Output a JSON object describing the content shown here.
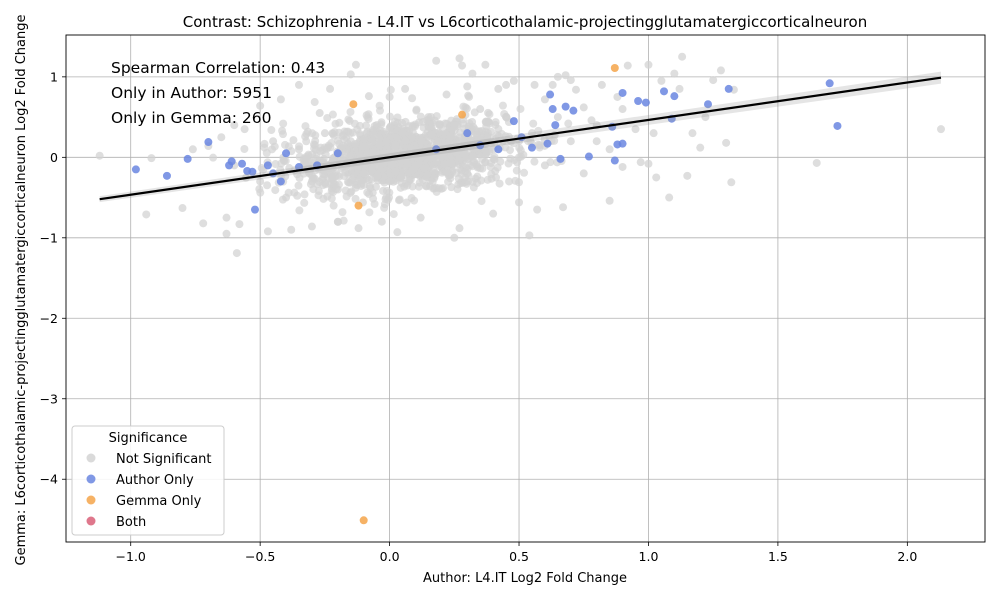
{
  "chart_data": {
    "type": "scatter",
    "title": "Contrast: Schizophrenia - L4.IT vs L6corticothalamic-projectingglutamatergiccorticalneuron",
    "xlabel": "Author: L4.IT Log2 Fold Change",
    "ylabel": "Gemma: L6corticothalamic-projectingglutamatergiccorticalneuron Log2 Fold Change",
    "xlim": [
      -1.25,
      2.3
    ],
    "ylim": [
      -4.78,
      1.52
    ],
    "xticks": [
      -1.0,
      -0.5,
      0.0,
      0.5,
      1.0,
      1.5,
      2.0
    ],
    "xtick_labels": [
      "−1.0",
      "−0.5",
      "0.0",
      "0.5",
      "1.0",
      "1.5",
      "2.0"
    ],
    "yticks": [
      -4,
      -3,
      -2,
      -1,
      0,
      1
    ],
    "ytick_labels": [
      "−4",
      "−3",
      "−2",
      "−1",
      "0",
      "1"
    ],
    "grid": true,
    "annotations": [
      "Spearman Correlation: 0.43",
      "Only in Author: 5951",
      "Only in Gemma: 260"
    ],
    "legend": {
      "title": "Significance",
      "placement": "lower-left",
      "entries": [
        {
          "label": "Not Significant",
          "color": "#d3d3d3"
        },
        {
          "label": "Author Only",
          "color": "#6a86e0"
        },
        {
          "label": "Gemma Only",
          "color": "#f5a54a"
        },
        {
          "label": "Both",
          "color": "#d95f78"
        }
      ]
    },
    "regression_line": {
      "x": [
        -1.12,
        2.13
      ],
      "y": [
        -0.52,
        0.99
      ],
      "color": "#000000"
    },
    "series": [
      {
        "name": "Not Significant",
        "color": "#d3d3d3",
        "points": [
          [
            -1.12,
            0.02
          ],
          [
            -0.94,
            -0.71
          ],
          [
            -0.92,
            -0.01
          ],
          [
            -0.8,
            -0.63
          ],
          [
            -0.76,
            0.1
          ],
          [
            -0.72,
            -0.82
          ],
          [
            -0.7,
            0.14
          ],
          [
            -0.65,
            0.25
          ],
          [
            -0.63,
            -0.75
          ],
          [
            -0.63,
            -0.95
          ],
          [
            -0.6,
            0.4
          ],
          [
            -0.59,
            -1.19
          ],
          [
            -0.58,
            -0.83
          ],
          [
            -0.56,
            0.35
          ],
          [
            -0.5,
            0.64
          ],
          [
            -0.47,
            -0.92
          ],
          [
            -0.42,
            0.72
          ],
          [
            -0.38,
            -0.9
          ],
          [
            -0.35,
            0.9
          ],
          [
            -0.3,
            -0.86
          ],
          [
            -0.27,
            0.55
          ],
          [
            -0.23,
            0.85
          ],
          [
            -0.2,
            -0.8
          ],
          [
            -0.15,
            1.03
          ],
          [
            -0.13,
            1.15
          ],
          [
            -0.12,
            -0.88
          ],
          [
            -0.08,
            0.76
          ],
          [
            -0.03,
            -0.8
          ],
          [
            0.0,
            0.75
          ],
          [
            0.03,
            -0.93
          ],
          [
            0.06,
            0.85
          ],
          [
            0.12,
            -0.75
          ],
          [
            0.18,
            1.2
          ],
          [
            0.22,
            0.78
          ],
          [
            0.25,
            -1.0
          ],
          [
            0.27,
            1.23
          ],
          [
            0.27,
            -0.88
          ],
          [
            0.28,
            1.14
          ],
          [
            0.3,
            0.88
          ],
          [
            0.32,
            1.04
          ],
          [
            0.37,
            1.15
          ],
          [
            0.4,
            -0.7
          ],
          [
            0.42,
            0.85
          ],
          [
            0.45,
            0.9
          ],
          [
            0.48,
            0.95
          ],
          [
            0.5,
            -0.56
          ],
          [
            0.54,
            -0.97
          ],
          [
            0.56,
            0.9
          ],
          [
            0.57,
            -0.65
          ],
          [
            0.6,
            0.72
          ],
          [
            0.63,
            0.9
          ],
          [
            0.65,
            1.0
          ],
          [
            0.67,
            -0.62
          ],
          [
            0.68,
            1.02
          ],
          [
            0.7,
            0.96
          ],
          [
            0.72,
            0.84
          ],
          [
            0.75,
            0.62
          ],
          [
            0.78,
            0.46
          ],
          [
            0.8,
            0.2
          ],
          [
            0.82,
            0.9
          ],
          [
            0.85,
            -0.54
          ],
          [
            0.88,
            0.75
          ],
          [
            0.9,
            -0.12
          ],
          [
            0.92,
            1.14
          ],
          [
            0.95,
            0.35
          ],
          [
            0.97,
            -0.06
          ],
          [
            1.0,
            1.15
          ],
          [
            1.0,
            -0.08
          ],
          [
            1.02,
            0.3
          ],
          [
            1.03,
            -0.25
          ],
          [
            1.05,
            0.95
          ],
          [
            1.08,
            -0.5
          ],
          [
            1.1,
            1.04
          ],
          [
            1.12,
            0.85
          ],
          [
            1.13,
            1.25
          ],
          [
            1.15,
            -0.23
          ],
          [
            1.17,
            0.3
          ],
          [
            1.2,
            0.12
          ],
          [
            1.22,
            0.5
          ],
          [
            1.25,
            0.96
          ],
          [
            1.28,
            1.08
          ],
          [
            1.3,
            0.18
          ],
          [
            1.32,
            -0.31
          ],
          [
            1.33,
            0.84
          ],
          [
            1.65,
            -0.07
          ],
          [
            2.13,
            0.35
          ],
          [
            -0.6,
            -0.1
          ],
          [
            -0.5,
            -0.3
          ],
          [
            -0.45,
            0.2
          ],
          [
            -0.4,
            -0.5
          ],
          [
            -0.35,
            0.1
          ],
          [
            -0.3,
            -0.3
          ],
          [
            -0.25,
            0.3
          ],
          [
            -0.2,
            -0.4
          ],
          [
            -0.15,
            0.2
          ],
          [
            -0.1,
            -0.2
          ],
          [
            -0.05,
            0.4
          ],
          [
            0.0,
            -0.3
          ],
          [
            0.05,
            0.3
          ],
          [
            0.1,
            -0.1
          ],
          [
            0.15,
            0.5
          ],
          [
            0.2,
            0.0
          ],
          [
            0.25,
            0.4
          ],
          [
            0.3,
            -0.2
          ],
          [
            0.35,
            0.6
          ],
          [
            0.4,
            0.1
          ],
          [
            0.45,
            0.5
          ],
          [
            0.5,
            0.0
          ],
          [
            0.55,
            0.3
          ],
          [
            0.6,
            -0.1
          ],
          [
            0.65,
            0.5
          ],
          [
            0.7,
            0.2
          ],
          [
            0.75,
            -0.2
          ],
          [
            0.8,
            0.4
          ],
          [
            0.85,
            0.1
          ],
          [
            0.9,
            0.6
          ]
        ]
      },
      {
        "name": "Author Only",
        "color": "#6a86e0",
        "points": [
          [
            -0.98,
            -0.15
          ],
          [
            -0.86,
            -0.23
          ],
          [
            -0.78,
            -0.02
          ],
          [
            -0.7,
            0.19
          ],
          [
            -0.62,
            -0.1
          ],
          [
            -0.61,
            -0.05
          ],
          [
            -0.57,
            -0.08
          ],
          [
            -0.55,
            -0.17
          ],
          [
            -0.53,
            -0.18
          ],
          [
            -0.52,
            -0.65
          ],
          [
            -0.47,
            -0.1
          ],
          [
            -0.45,
            -0.2
          ],
          [
            -0.42,
            -0.3
          ],
          [
            -0.4,
            0.05
          ],
          [
            -0.35,
            -0.12
          ],
          [
            -0.28,
            -0.1
          ],
          [
            -0.2,
            0.05
          ],
          [
            0.18,
            0.1
          ],
          [
            0.3,
            0.3
          ],
          [
            0.35,
            0.15
          ],
          [
            0.42,
            0.1
          ],
          [
            0.48,
            0.45
          ],
          [
            0.51,
            0.25
          ],
          [
            0.55,
            0.12
          ],
          [
            0.61,
            0.17
          ],
          [
            0.62,
            0.78
          ],
          [
            0.63,
            0.6
          ],
          [
            0.64,
            0.4
          ],
          [
            0.66,
            -0.02
          ],
          [
            0.68,
            0.63
          ],
          [
            0.71,
            0.58
          ],
          [
            0.77,
            0.01
          ],
          [
            0.86,
            0.38
          ],
          [
            0.87,
            -0.04
          ],
          [
            0.88,
            0.16
          ],
          [
            0.9,
            0.17
          ],
          [
            0.9,
            0.8
          ],
          [
            0.96,
            0.7
          ],
          [
            0.99,
            0.68
          ],
          [
            1.06,
            0.82
          ],
          [
            1.09,
            0.48
          ],
          [
            1.1,
            0.76
          ],
          [
            1.23,
            0.66
          ],
          [
            1.31,
            0.85
          ],
          [
            1.7,
            0.92
          ],
          [
            1.73,
            0.39
          ]
        ]
      },
      {
        "name": "Gemma Only",
        "color": "#f5a54a",
        "points": [
          [
            -0.14,
            0.66
          ],
          [
            -0.12,
            -0.6
          ],
          [
            0.28,
            0.53
          ],
          [
            0.87,
            1.11
          ],
          [
            -0.1,
            -4.51
          ]
        ]
      },
      {
        "name": "Both",
        "color": "#d95f78",
        "points": []
      }
    ]
  }
}
